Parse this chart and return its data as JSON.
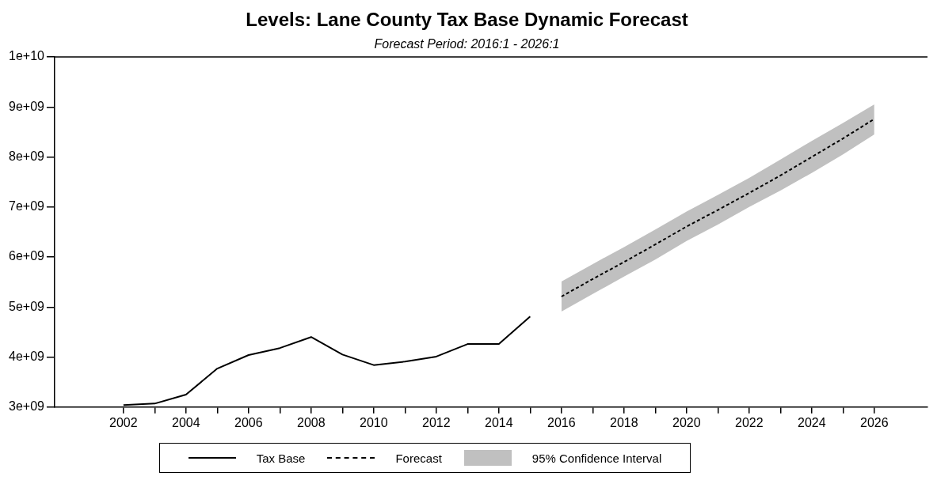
{
  "chart_data": {
    "type": "line",
    "title": "Levels: Lane County Tax Base Dynamic Forecast",
    "subtitle": "Forecast Period: 2016:1 - 2026:1",
    "xlim": [
      1999.8,
      2027.7
    ],
    "xticks": [
      2002,
      {
        "value": 2003,
        "label": null
      },
      2004,
      {
        "value": 2005,
        "label": null
      },
      2006,
      {
        "value": 2007,
        "label": null
      },
      2008,
      {
        "value": 2009,
        "label": null
      },
      2010,
      {
        "value": 2011,
        "label": null
      },
      2012,
      {
        "value": 2013,
        "label": null
      },
      2014,
      {
        "value": 2015,
        "label": null
      },
      2016,
      {
        "value": 2017,
        "label": null
      },
      2018,
      {
        "value": 2019,
        "label": null
      },
      2020,
      {
        "value": 2021,
        "label": null
      },
      2022,
      {
        "value": 2023,
        "label": null
      },
      2024,
      {
        "value": 2025,
        "label": null
      },
      2026
    ],
    "ylim": [
      3000000000,
      10000000000
    ],
    "yticks": [
      {
        "value": 3000000000,
        "label": "3e+09"
      },
      {
        "value": 4000000000,
        "label": "4e+09"
      },
      {
        "value": 5000000000,
        "label": "5e+09"
      },
      {
        "value": 6000000000,
        "label": "6e+09"
      },
      {
        "value": 7000000000,
        "label": "7e+09"
      },
      {
        "value": 8000000000,
        "label": "8e+09"
      },
      {
        "value": 9000000000,
        "label": "9e+09"
      },
      {
        "value": 10000000000,
        "label": "1e+10"
      }
    ],
    "marker": "none",
    "legend": "bottom",
    "annotations": [
      "95% Confidence Interval"
    ],
    "series": [
      {
        "name": "Tax Base",
        "color": "#000000",
        "line_style": "solid",
        "x": [
          2002,
          2003,
          2004,
          2005,
          2006,
          2007,
          2008,
          2009,
          2010,
          2011,
          2012,
          2013,
          2014,
          2015
        ],
        "values": [
          3040000000,
          3070000000,
          3250000000,
          3770000000,
          4040000000,
          4180000000,
          4400000000,
          4050000000,
          3840000000,
          3910000000,
          4010000000,
          4260000000,
          4260000000,
          4810000000
        ]
      },
      {
        "name": "Forecast",
        "color": "#000000",
        "line_style": "dashed",
        "x": [
          2016,
          2017,
          2018,
          2019,
          2020,
          2021,
          2022,
          2023,
          2024,
          2025,
          2026
        ],
        "values": [
          5210000000,
          5560000000,
          5900000000,
          6250000000,
          6610000000,
          6940000000,
          7280000000,
          7630000000,
          8000000000,
          8370000000,
          8760000000
        ],
        "lower": [
          4910000000,
          5260000000,
          5610000000,
          5950000000,
          6320000000,
          6650000000,
          7000000000,
          7330000000,
          7680000000,
          8050000000,
          8450000000
        ],
        "upper": [
          5510000000,
          5860000000,
          6200000000,
          6550000000,
          6910000000,
          7240000000,
          7580000000,
          7950000000,
          8320000000,
          8680000000,
          9050000000
        ]
      }
    ]
  }
}
